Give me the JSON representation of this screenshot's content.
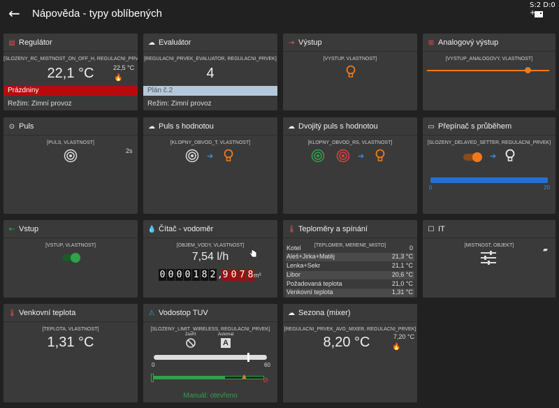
{
  "header": {
    "title": "Nápověda - typy oblíbených",
    "back_icon": "←",
    "status": "S:2 D:0 +"
  },
  "cards": {
    "regulator": {
      "title": "Regulátor",
      "tags": "[SLOZENY_RC_MISTNOST_ON_OFF_H, REGULACNI_PRVEK]",
      "value": "22,1 °C",
      "setpoint": "22,5 °C",
      "banner": "Prázdniny",
      "mode": "Režim: Zimní provoz"
    },
    "evaluator": {
      "title": "Evaluátor",
      "tags": "[REGULACNI_PRVEK_EVALUATOR, REGULACNI_PRVEK]",
      "value": "4",
      "banner": "Plán č.2",
      "mode": "Režim: Zimní provoz"
    },
    "vystup": {
      "title": "Výstup",
      "tags": "[VYSTUP, VLASTNOST]"
    },
    "analog": {
      "title": "Analogový výstup",
      "tags": "[VYSTUP_ANALOGOVY, VLASTNOST]",
      "level": 0.82
    },
    "puls": {
      "title": "Puls",
      "tags": "[PULS, VLASTNOST]",
      "duration": "2s"
    },
    "puls_val": {
      "title": "Puls s hodnotou",
      "tags": "[KLOPNY_OBVOD_T, VLASTNOST]"
    },
    "dual_puls": {
      "title": "Dvojitý puls s hodnotou",
      "tags": "[KLOPNY_OBVOD_RS, VLASTNOST]"
    },
    "prepinac": {
      "title": "Přepínač s průběhem",
      "tags": "[SLOZENY_DELAYED_SETTER, REGULACNI_PRVEK]",
      "min": "0",
      "max": "20",
      "level": 1.0
    },
    "vstup": {
      "title": "Vstup",
      "tags": "[VSTUP, VLASTNOST]"
    },
    "citac": {
      "title": "Čítač - vodoměr",
      "tags": "[OBJEM_VODY, VLASTNOST]",
      "value": "7,54 l/h",
      "digits": [
        "0",
        "0",
        "0",
        "0",
        "1",
        "8",
        "2"
      ],
      "sep": ",",
      "dec_digits": [
        "9",
        "0",
        "7",
        "8"
      ],
      "unit": "m³"
    },
    "teplomery": {
      "title": "Teploměry a spínání",
      "tags": "[TEPLOMER, MERENE_MISTO]",
      "rows": [
        {
          "name": "Kotel",
          "value": "0"
        },
        {
          "name": "Aleš+Jirka+Matěj",
          "value": "21,3 °C"
        },
        {
          "name": "Lenka+Sekr",
          "value": "21,1 °C"
        },
        {
          "name": "Libor",
          "value": "20,6 °C"
        },
        {
          "name": "Požadovaná teplota",
          "value": "21,0 °C"
        },
        {
          "name": "Venkovní teplota",
          "value": "1,31 °C"
        }
      ]
    },
    "it": {
      "title": "IT",
      "tags": "[MISTNOST, OBJEKT]"
    },
    "venkovni": {
      "title": "Venkovní teplota",
      "tags": "[TEPLOTA, VLASTNOST]",
      "value": "1,31 °C"
    },
    "vodostop": {
      "title": "Vodostop TUV",
      "tags": "[SLOZENY_LIMIT_WIRELESS, REGULACNI_PRVEK]",
      "close_label": "Zavřít",
      "auto_label": "Automat",
      "auto_letter": "A",
      "min": "0",
      "max": "60",
      "level": 0.83,
      "progress": 0.65,
      "status": "Manuál: otevřeno"
    },
    "sezona": {
      "title": "Sezona (mixer)",
      "tags": "[REGULACNI_PRVEK_AVG_MIXER, REGULACNI_PRVEK]",
      "value": "8,20 °C",
      "setpoint": "7,20 °C"
    }
  },
  "colors": {
    "accent_orange": "#f07a1a",
    "red": "#b80b0b",
    "blue": "#1f6fe0",
    "green": "#2fa24a"
  }
}
